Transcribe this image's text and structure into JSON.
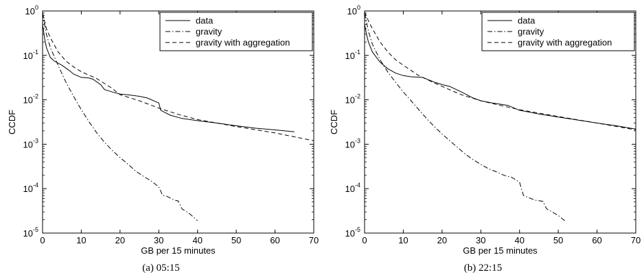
{
  "chart_data": [
    {
      "type": "line",
      "caption": "(a)  05:15",
      "xlabel": "GB per 15 minutes",
      "ylabel": "CCDF",
      "xlim": [
        0,
        70
      ],
      "ylim_log10": [
        -5,
        0
      ],
      "yscale": "log",
      "grid": false,
      "legend_placement": "top-right",
      "xticks": [
        "0",
        "10",
        "20",
        "30",
        "40",
        "50",
        "60",
        "70"
      ],
      "yticks": [
        {
          "base": "10",
          "exp": "0"
        },
        {
          "base": "10",
          "exp": "-1"
        },
        {
          "base": "10",
          "exp": "-2"
        },
        {
          "base": "10",
          "exp": "-3"
        },
        {
          "base": "10",
          "exp": "-4"
        },
        {
          "base": "10",
          "exp": "-5"
        }
      ],
      "series": [
        {
          "name": "data",
          "style": "solid",
          "x": [
            0,
            0.5,
            1,
            2,
            3,
            5,
            7,
            8,
            10,
            12,
            13,
            15,
            16,
            18,
            20,
            22,
            25,
            27,
            30,
            30.5,
            33,
            36,
            40,
            45,
            50,
            55,
            60,
            65
          ],
          "y": [
            0.5,
            0.25,
            0.15,
            0.09,
            0.075,
            0.06,
            0.045,
            0.038,
            0.032,
            0.031,
            0.029,
            0.022,
            0.017,
            0.015,
            0.0135,
            0.013,
            0.012,
            0.011,
            0.0085,
            0.0058,
            0.0045,
            0.0038,
            0.0034,
            0.003,
            0.0026,
            0.0023,
            0.0021,
            0.0019
          ]
        },
        {
          "name": "gravity",
          "style": "dashdot",
          "x": [
            0,
            1,
            2,
            4,
            6,
            8,
            10,
            12,
            14,
            16,
            18,
            20,
            22,
            24,
            26,
            28,
            30,
            31,
            32,
            34,
            35,
            36,
            38,
            40
          ],
          "y": [
            0.9,
            0.3,
            0.15,
            0.06,
            0.025,
            0.012,
            0.006,
            0.0032,
            0.0018,
            0.0011,
            0.00072,
            0.0005,
            0.00036,
            0.00025,
            0.00019,
            0.00015,
            0.00011,
            7e-05,
            6.8e-05,
            5.5e-05,
            5.3e-05,
            3.5e-05,
            2.7e-05,
            1.9e-05
          ]
        },
        {
          "name": "gravity with aggregation",
          "style": "dashed",
          "x": [
            0,
            1,
            2,
            4,
            6,
            8,
            10,
            14,
            18,
            20,
            25,
            30,
            35,
            40,
            50,
            60,
            70
          ],
          "y": [
            0.9,
            0.4,
            0.25,
            0.12,
            0.075,
            0.055,
            0.043,
            0.03,
            0.018,
            0.013,
            0.0095,
            0.0065,
            0.0047,
            0.0036,
            0.0025,
            0.0018,
            0.0012
          ]
        }
      ]
    },
    {
      "type": "line",
      "caption": "(b)  22:15",
      "xlabel": "GB per 15 minutes",
      "ylabel": "CCDF",
      "xlim": [
        0,
        70
      ],
      "ylim_log10": [
        -5,
        0
      ],
      "yscale": "log",
      "grid": false,
      "legend_placement": "top-right",
      "xticks": [
        "0",
        "10",
        "20",
        "30",
        "40",
        "50",
        "60",
        "70"
      ],
      "yticks": [
        {
          "base": "10",
          "exp": "0"
        },
        {
          "base": "10",
          "exp": "-1"
        },
        {
          "base": "10",
          "exp": "-2"
        },
        {
          "base": "10",
          "exp": "-3"
        },
        {
          "base": "10",
          "exp": "-4"
        },
        {
          "base": "10",
          "exp": "-5"
        }
      ],
      "series": [
        {
          "name": "data",
          "style": "solid",
          "x": [
            0,
            0.5,
            1,
            2,
            4,
            6,
            8,
            10,
            12,
            15,
            18,
            20,
            22,
            25,
            28,
            30,
            33,
            37,
            40,
            45,
            50,
            55,
            60,
            65,
            70
          ],
          "y": [
            0.5,
            0.3,
            0.2,
            0.12,
            0.07,
            0.05,
            0.04,
            0.035,
            0.033,
            0.032,
            0.025,
            0.022,
            0.02,
            0.015,
            0.011,
            0.0095,
            0.0085,
            0.0075,
            0.0058,
            0.0048,
            0.0041,
            0.0035,
            0.003,
            0.0026,
            0.0022
          ]
        },
        {
          "name": "gravity",
          "style": "dashdot",
          "x": [
            0,
            1,
            2,
            4,
            6,
            8,
            10,
            12,
            14,
            16,
            18,
            20,
            22,
            24,
            26,
            28,
            30,
            32,
            34,
            36,
            38,
            40,
            41,
            44,
            46,
            47,
            50,
            52
          ],
          "y": [
            0.9,
            0.35,
            0.18,
            0.08,
            0.042,
            0.025,
            0.015,
            0.0095,
            0.006,
            0.0038,
            0.0025,
            0.0017,
            0.0012,
            0.00085,
            0.0006,
            0.00045,
            0.00035,
            0.00028,
            0.00024,
            0.0002,
            0.00018,
            0.00014,
            7e-05,
            5.5e-05,
            5.2e-05,
            3.5e-05,
            2.5e-05,
            1.8e-05
          ]
        },
        {
          "name": "gravity with aggregation",
          "style": "dashed",
          "x": [
            0,
            1,
            2,
            4,
            6,
            8,
            10,
            14,
            18,
            20,
            25,
            30,
            35,
            40,
            50,
            60,
            70
          ],
          "y": [
            0.95,
            0.6,
            0.4,
            0.2,
            0.12,
            0.08,
            0.06,
            0.035,
            0.024,
            0.02,
            0.013,
            0.0095,
            0.0075,
            0.006,
            0.0042,
            0.003,
            0.0021
          ]
        }
      ]
    }
  ]
}
